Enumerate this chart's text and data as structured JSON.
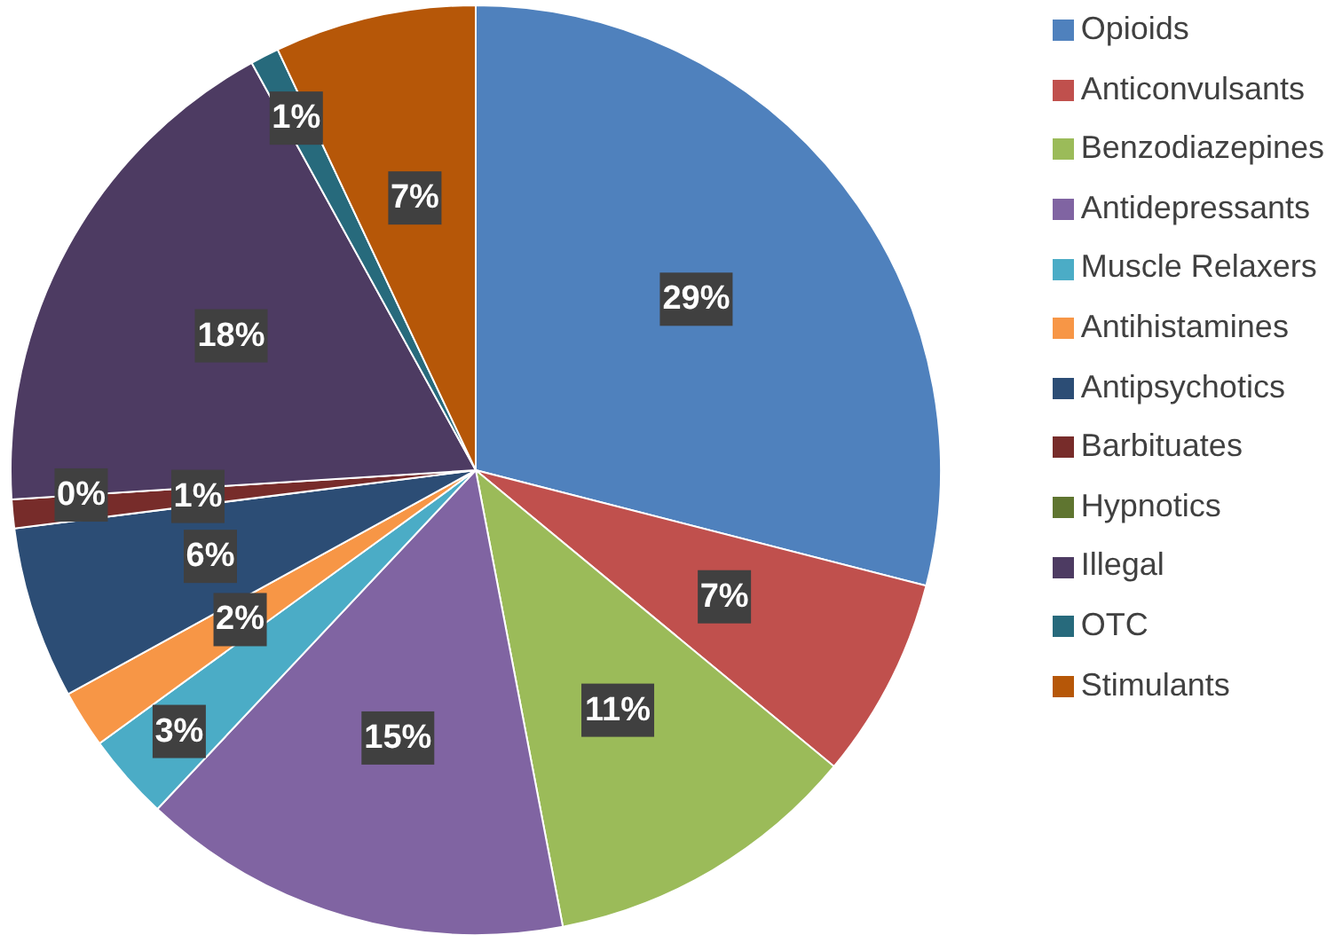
{
  "chart_data": {
    "type": "pie",
    "categories": [
      "Opioids",
      "Anticonvulsants",
      "Benzodiazepines",
      "Antidepressants",
      "Muscle Relaxers",
      "Antihistamines",
      "Antipsychotics",
      "Barbituates",
      "Hypnotics",
      "Illegal",
      "OTC",
      "Stimulants"
    ],
    "values": [
      29,
      7,
      11,
      15,
      3,
      2,
      6,
      1,
      0,
      18,
      1,
      7
    ],
    "colors": [
      "#4f81bd",
      "#c0504d",
      "#9bbb59",
      "#8064a2",
      "#4bacc6",
      "#f79646",
      "#2c4d75",
      "#772c2a",
      "#5f7530",
      "#4d3b62",
      "#276a7c",
      "#b65708"
    ],
    "value_labels": [
      "29%",
      "7%",
      "11%",
      "15%",
      "3%",
      "2%",
      "6%",
      "1%",
      "0%",
      "18%",
      "1%",
      "7%"
    ],
    "legend": "right"
  }
}
